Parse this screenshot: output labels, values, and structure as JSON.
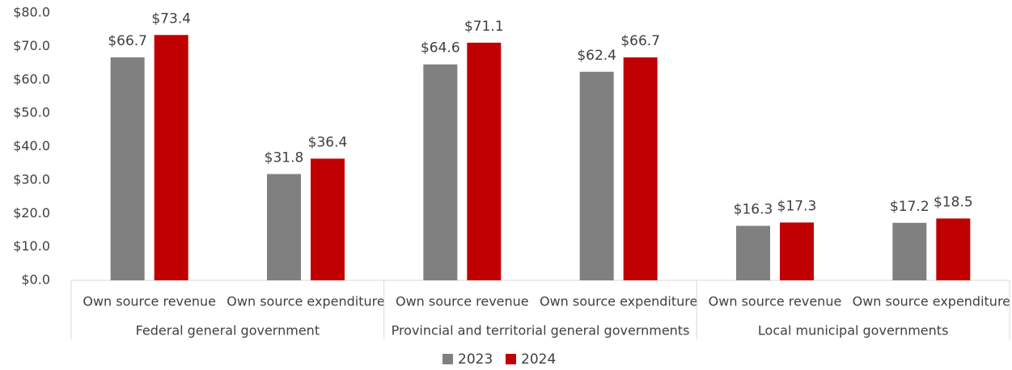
{
  "chart_data": {
    "type": "bar",
    "categories": [
      "Own source revenue",
      "Own source expenditure",
      "Own source revenue",
      "Own source expenditure",
      "Own source revenue",
      "Own source expenditure"
    ],
    "category_groups": [
      "Federal general government",
      "Provincial and territorial general governments",
      "Local municipal governments"
    ],
    "series": [
      {
        "name": "2023",
        "color": "#808080",
        "values": [
          66.7,
          31.8,
          64.6,
          62.4,
          16.3,
          17.2
        ],
        "value_labels": [
          "$66.7",
          "$31.8",
          "$64.6",
          "$62.4",
          "$16.3",
          "$17.2"
        ]
      },
      {
        "name": "2024",
        "color": "#c00000",
        "values": [
          73.4,
          36.4,
          71.1,
          66.7,
          17.3,
          18.5
        ],
        "value_labels": [
          "$73.4",
          "$36.4",
          "$71.1",
          "$66.7",
          "$17.3",
          "$18.5"
        ]
      }
    ],
    "ylim": [
      0,
      80
    ],
    "yticks": [
      {
        "value": 0,
        "label": "$0.0"
      },
      {
        "value": 10,
        "label": "$10.0"
      },
      {
        "value": 20,
        "label": "$20.0"
      },
      {
        "value": 30,
        "label": "$30.0"
      },
      {
        "value": 40,
        "label": "$40.0"
      },
      {
        "value": 50,
        "label": "$50.0"
      },
      {
        "value": 60,
        "label": "$60.0"
      },
      {
        "value": 70,
        "label": "$70.0"
      },
      {
        "value": 80,
        "label": "$80.0"
      }
    ],
    "grid": false,
    "legend": "bottom"
  }
}
